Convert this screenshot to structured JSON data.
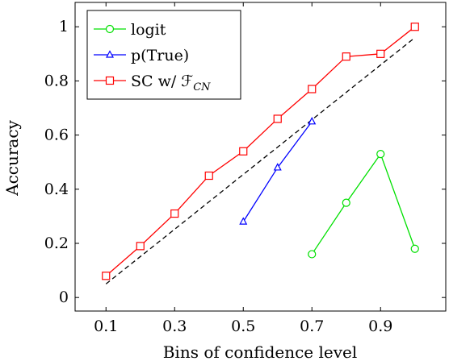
{
  "chart_data": {
    "type": "line",
    "title": "",
    "xlabel": "Bins of confidence level",
    "ylabel": "Accuracy",
    "xlim": [
      0.01,
      1.09
    ],
    "ylim": [
      -0.05,
      1.09
    ],
    "xticks": [
      0.1,
      0.3,
      0.5,
      0.7,
      0.9
    ],
    "xtick_labels": [
      "0.1",
      "0.3",
      "0.5",
      "0.7",
      "0.9"
    ],
    "yticks": [
      0,
      0.2,
      0.4,
      0.6,
      0.8,
      1
    ],
    "ytick_labels": [
      "0",
      "0.2",
      "0.4",
      "0.6",
      "0.8",
      "1"
    ],
    "grid": false,
    "legend_position": "top-left",
    "reference_line": {
      "style": "dashed",
      "color": "#000000",
      "x": [
        0.1,
        1.0
      ],
      "y": [
        0.05,
        0.96
      ]
    },
    "series": [
      {
        "name": "logit",
        "color": "#00e000",
        "marker": "circle",
        "x": [
          0.7,
          0.8,
          0.9,
          1.0
        ],
        "y": [
          0.16,
          0.35,
          0.53,
          0.18
        ]
      },
      {
        "name": "p(True)",
        "color": "#0000ff",
        "marker": "triangle",
        "x": [
          0.5,
          0.6,
          0.7
        ],
        "y": [
          0.28,
          0.48,
          0.65
        ]
      },
      {
        "name": "SC w/ ℱ",
        "name_subscript": "CN",
        "color": "#ff0000",
        "marker": "square",
        "x": [
          0.1,
          0.2,
          0.3,
          0.4,
          0.5,
          0.6,
          0.7,
          0.8,
          0.9,
          1.0
        ],
        "y": [
          0.08,
          0.19,
          0.31,
          0.45,
          0.54,
          0.66,
          0.77,
          0.89,
          0.9,
          1.0
        ]
      }
    ]
  }
}
